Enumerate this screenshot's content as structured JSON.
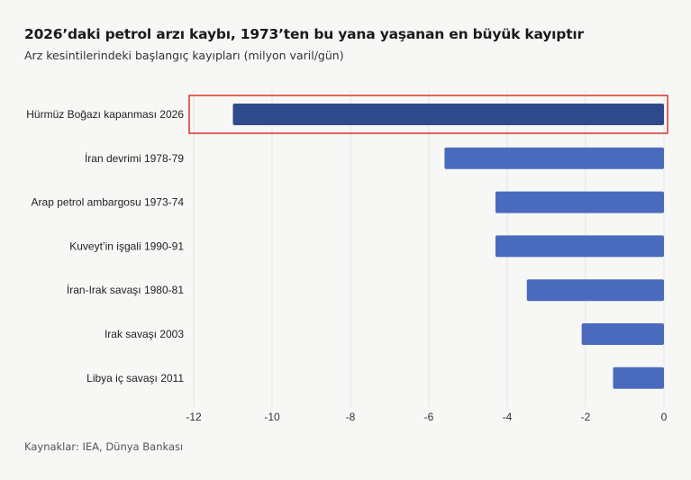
{
  "title": "2026’daki petrol arzı kaybı, 1973’ten bu yana yaşanan en büyük kayıptır",
  "subtitle": "Arz kesintilerindeki başlangıç kayıpları (milyon varil/gün)",
  "source": "Kaynaklar: IEA, Dünya Bankası",
  "colors": {
    "bar": "#4a6bbd",
    "highlight_bar": "#2f4a8a",
    "highlight_box": "#d9362b",
    "grid": "#e6e6e6"
  },
  "chart_data": {
    "type": "bar",
    "orientation": "horizontal",
    "categories": [
      "Hürmüz Boğazı kapanması 2026",
      "İran devrimi 1978-79",
      "Arap petrol ambargosu 1973-74",
      "Kuveyt’in işgali 1990-91",
      "İran-Irak savaşı 1980-81",
      "Irak savaşı 2003",
      "Libya iç savaşı 2011"
    ],
    "values": [
      -11.0,
      -5.6,
      -4.3,
      -4.3,
      -3.5,
      -2.1,
      -1.3
    ],
    "highlighted_category": "Hürmüz Boğazı kapanması 2026",
    "xlim": [
      -12,
      0
    ],
    "xticks": [
      -12,
      -10,
      -8,
      -6,
      -4,
      -2,
      0
    ],
    "xtick_labels": [
      "-12",
      "-10",
      "-8",
      "-6",
      "-4",
      "-2",
      "0"
    ],
    "grid": true
  }
}
